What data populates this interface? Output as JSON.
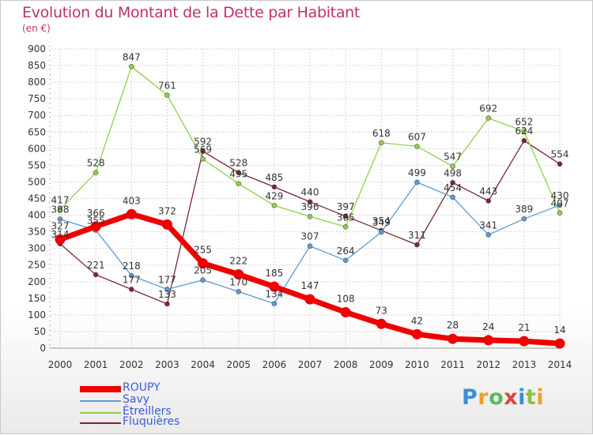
{
  "title": "Evolution du Montant de la Dette par Habitant",
  "subtitle": "(en €)",
  "logo": {
    "text": "Proxiti",
    "colors": [
      "#3b8fd6",
      "#f0a020",
      "#5cb85c",
      "#e04040",
      "#3b8fd6",
      "#8bc34a",
      "#f0a020"
    ]
  },
  "chart_data": {
    "type": "line",
    "title": "Evolution du Montant de la Dette par Habitant",
    "ylabel": "(en €)",
    "xlabel": "",
    "x": [
      "2000",
      "2001",
      "2002",
      "2003",
      "2004",
      "2005",
      "2006",
      "2007",
      "2008",
      "2009",
      "2010",
      "2011",
      "2012",
      "2013",
      "2014"
    ],
    "ylim": [
      0,
      900
    ],
    "yticks": [
      0,
      50,
      100,
      150,
      200,
      250,
      300,
      350,
      400,
      450,
      500,
      550,
      600,
      650,
      700,
      750,
      800,
      850,
      900
    ],
    "grid": true,
    "legend_position": "bottom-left",
    "series": [
      {
        "name": "ROUPY",
        "color": "#ee0000",
        "values": [
          327,
          366,
          403,
          372,
          255,
          222,
          185,
          147,
          108,
          73,
          42,
          28,
          24,
          21,
          14
        ]
      },
      {
        "name": "Savy",
        "color": "#5b9bd5",
        "values": [
          388,
          355,
          218,
          177,
          205,
          170,
          134,
          307,
          264,
          349,
          499,
          454,
          341,
          389,
          430
        ]
      },
      {
        "name": "Étreillers",
        "color": "#8fd04a",
        "values": [
          417,
          528,
          847,
          761,
          569,
          495,
          429,
          396,
          365,
          618,
          607,
          547,
          692,
          652,
          407
        ]
      },
      {
        "name": "Fluquières",
        "color": "#7b2630",
        "values": [
          314,
          221,
          177,
          133,
          592,
          528,
          485,
          440,
          397,
          354,
          311,
          498,
          443,
          624,
          554
        ]
      }
    ]
  }
}
